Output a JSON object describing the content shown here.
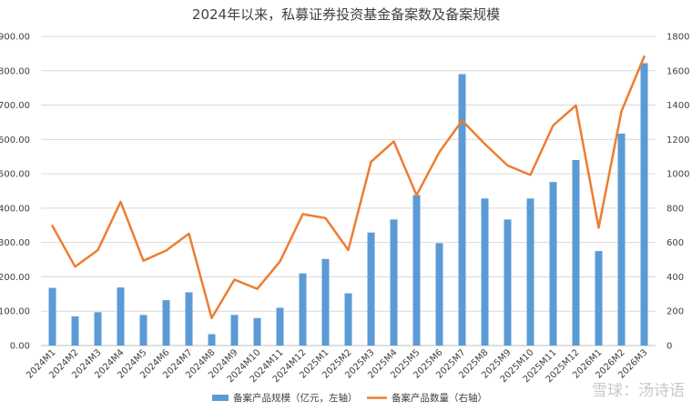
{
  "chart_data": {
    "type": "bar+line",
    "title": "2024年以来，私募证券投资基金备案数及备案规模",
    "categories": [
      "2024M1",
      "2024M2",
      "2024M3",
      "2024M4",
      "2024M5",
      "2024M6",
      "2024M7",
      "2024M8",
      "2024M9",
      "2024M10",
      "2024M11",
      "2024M12",
      "2025M1",
      "2025M2",
      "2025M3",
      "2025M4",
      "2025M5",
      "2025M6",
      "2025M7",
      "2025M8",
      "2025M9",
      "2025M10",
      "2025M11",
      "2025M12",
      "2026M1",
      "2026M2",
      "2026M3"
    ],
    "series": [
      {
        "name": "备案产品规模（亿元，左轴）",
        "type": "bar",
        "axis": "left",
        "color": "#5b9bd5",
        "values": [
          168,
          85,
          97,
          169,
          89,
          132,
          155,
          33,
          89,
          80,
          110,
          210,
          252,
          152,
          329,
          367,
          438,
          298,
          790,
          428,
          367,
          428,
          476,
          540,
          275,
          617,
          822
        ]
      },
      {
        "name": "备案产品数量（右轴）",
        "type": "line",
        "axis": "right",
        "color": "#ed7d31",
        "values": [
          697,
          459,
          556,
          837,
          494,
          553,
          651,
          160,
          384,
          330,
          489,
          765,
          742,
          556,
          1070,
          1188,
          875,
          1126,
          1310,
          1173,
          1048,
          993,
          1281,
          1398,
          686,
          1363,
          1683
        ]
      }
    ],
    "y_left": {
      "min": 0,
      "max": 900,
      "step": 100,
      "tick_labels": [
        "0.00",
        "100.00",
        "200.00",
        "300.00",
        "400.00",
        "500.00",
        "600.00",
        "700.00",
        "800.00",
        "900.00"
      ]
    },
    "y_right": {
      "min": 0,
      "max": 1800,
      "step": 200,
      "tick_labels": [
        "0",
        "200",
        "400",
        "600",
        "800",
        "1000",
        "1200",
        "1400",
        "1600",
        "1800"
      ]
    },
    "grid": true,
    "legend_position": "bottom"
  },
  "watermark": "雪球：汤诗语"
}
